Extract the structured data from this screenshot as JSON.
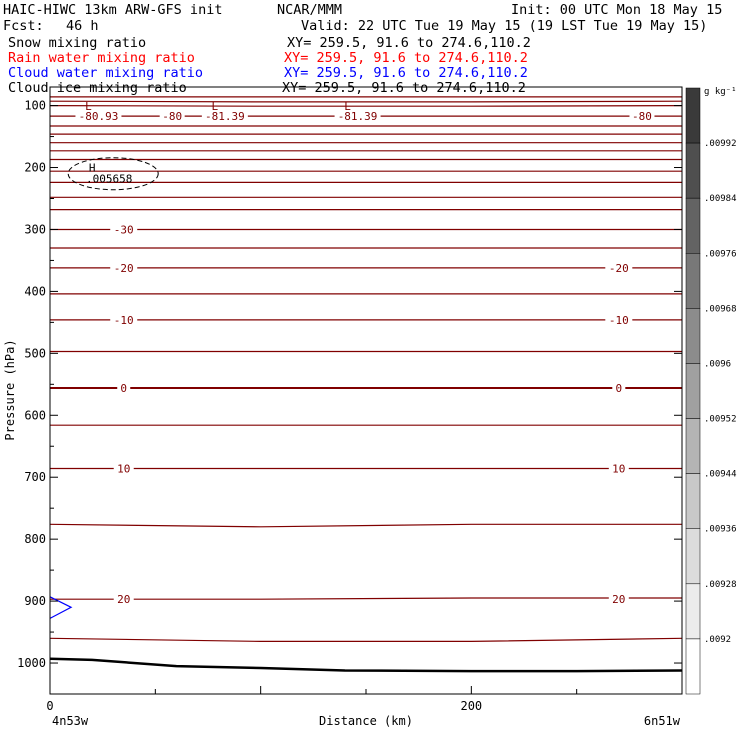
{
  "header": {
    "title_line": "HAIC-HIWC 13km ARW-GFS init",
    "org": "NCAR/MMM",
    "init": "Init: 00 UTC Mon 18 May 15",
    "fcst_label": "Fcst:",
    "fcst_value": "46 h",
    "valid": "Valid: 22 UTC Tue 19 May 15 (19 LST Tue 19 May 15)"
  },
  "fields": [
    {
      "name": "Snow mixing ratio",
      "xy": "XY= 259.5, 91.6 to 274.6,110.2",
      "color": "#000000"
    },
    {
      "name": "Rain water mixing ratio",
      "xy": "XY= 259.5, 91.6 to 274.6,110.2",
      "color": "#ff0000"
    },
    {
      "name": "Cloud water mixing ratio",
      "xy": "XY= 259.5, 91.6 to 274.6,110.2",
      "color": "#0000ff"
    },
    {
      "name": "Cloud ice mixing ratio",
      "xy": "XY= 259.5, 91.6 to 274.6,110.2",
      "color": "#000000"
    }
  ],
  "chart_data": {
    "type": "contour",
    "xlabel": "Distance (km)",
    "ylabel": "Pressure (hPa)",
    "xlim": [
      0,
      300
    ],
    "ylim": [
      1050,
      70
    ],
    "xticks": [
      0,
      200
    ],
    "xtick_labels": [
      "0",
      "200"
    ],
    "yticks": [
      100,
      200,
      300,
      400,
      500,
      600,
      700,
      800,
      900,
      1000
    ],
    "ytick_labels": [
      "100",
      "200",
      "300",
      "400",
      "500",
      "600",
      "700",
      "800",
      "900",
      "1000"
    ],
    "x_endpoints": {
      "left": "4n53w",
      "right": "6n51w"
    },
    "contour_color": "#800000",
    "temperature_contours": [
      {
        "p": [
          86,
          86,
          86,
          86
        ],
        "label": null
      },
      {
        "p": [
          93,
          94,
          94,
          93
        ],
        "label": null
      },
      {
        "p": [
          100,
          101,
          101,
          100
        ],
        "label": null
      },
      {
        "p": [
          117,
          117,
          117,
          117
        ],
        "label": null
      },
      {
        "p": [
          133,
          133,
          133,
          133
        ],
        "label": null
      },
      {
        "p": [
          146,
          146,
          146,
          146
        ],
        "label": null
      },
      {
        "p": [
          160,
          160,
          160,
          160
        ],
        "label": null
      },
      {
        "p": [
          173,
          173,
          173,
          173
        ],
        "label": null
      },
      {
        "p": [
          187,
          187,
          187,
          187
        ],
        "label": null
      },
      {
        "p": [
          206,
          206,
          206,
          206
        ],
        "label": null
      },
      {
        "p": [
          224,
          224,
          224,
          224
        ],
        "label": null
      },
      {
        "p": [
          248,
          248,
          248,
          248
        ],
        "label": null
      },
      {
        "p": [
          268,
          268,
          268,
          268
        ],
        "label": null
      },
      {
        "p": [
          300,
          300,
          300,
          300
        ],
        "label": "-30"
      },
      {
        "p": [
          330,
          330,
          330,
          330
        ],
        "label": null
      },
      {
        "p": [
          362,
          362,
          362,
          362
        ],
        "label": "-20"
      },
      {
        "p": [
          404,
          404,
          404,
          404
        ],
        "label": null
      },
      {
        "p": [
          446,
          446,
          446,
          446
        ],
        "label": "-10"
      },
      {
        "p": [
          497,
          497,
          497,
          497
        ],
        "label": null
      },
      {
        "p": [
          556,
          556,
          556,
          556
        ],
        "label": "0",
        "bold": true
      },
      {
        "p": [
          616,
          616,
          616,
          616
        ],
        "label": null
      },
      {
        "p": [
          686,
          686,
          686,
          686
        ],
        "label": "10"
      },
      {
        "p": [
          776,
          780,
          776,
          776
        ],
        "label": null
      },
      {
        "p": [
          897,
          897,
          895,
          895
        ],
        "label": "20"
      },
      {
        "p": [
          960,
          965,
          965,
          960
        ],
        "label": null
      }
    ],
    "contour_label_x": [
      [
        35,
        270
      ]
    ],
    "temp_label_values": [
      "-30",
      "-20",
      "-10",
      "0",
      "10",
      "20"
    ],
    "upper_labels": [
      {
        "x": 23,
        "text": "-80.93",
        "marker": "L"
      },
      {
        "x": 58,
        "text": "-80",
        "marker": null
      },
      {
        "x": 83,
        "text": "-81.39",
        "marker": "L"
      },
      {
        "x": 146,
        "text": "-81.39",
        "marker": "L"
      },
      {
        "x": 281,
        "text": "-80",
        "marker": null
      }
    ],
    "snow_contour": {
      "center_x": 30,
      "center_p": 210,
      "label_marker": "H",
      "label_value": ".005658"
    },
    "cloud_water_feature": {
      "x": [
        0,
        10,
        0
      ],
      "p": [
        893,
        910,
        928
      ]
    },
    "terrain": {
      "x": [
        0,
        20,
        60,
        100,
        140,
        200,
        250,
        300
      ],
      "p": [
        993,
        995,
        1005,
        1008,
        1012,
        1013,
        1013,
        1012
      ]
    },
    "colorbar": {
      "unit": "g kg⁻¹",
      "labels": [
        ".00992",
        ".00984",
        ".00976",
        ".00968",
        ".0096",
        ".00952",
        ".00944",
        ".00936",
        ".00928",
        ".0092"
      ],
      "colors": [
        "#3a3a3a",
        "#4f4f4f",
        "#636363",
        "#787878",
        "#8c8c8c",
        "#a0a0a0",
        "#b4b4b4",
        "#c8c8c8",
        "#dcdcdc",
        "#ececec",
        "#ffffff"
      ]
    }
  }
}
